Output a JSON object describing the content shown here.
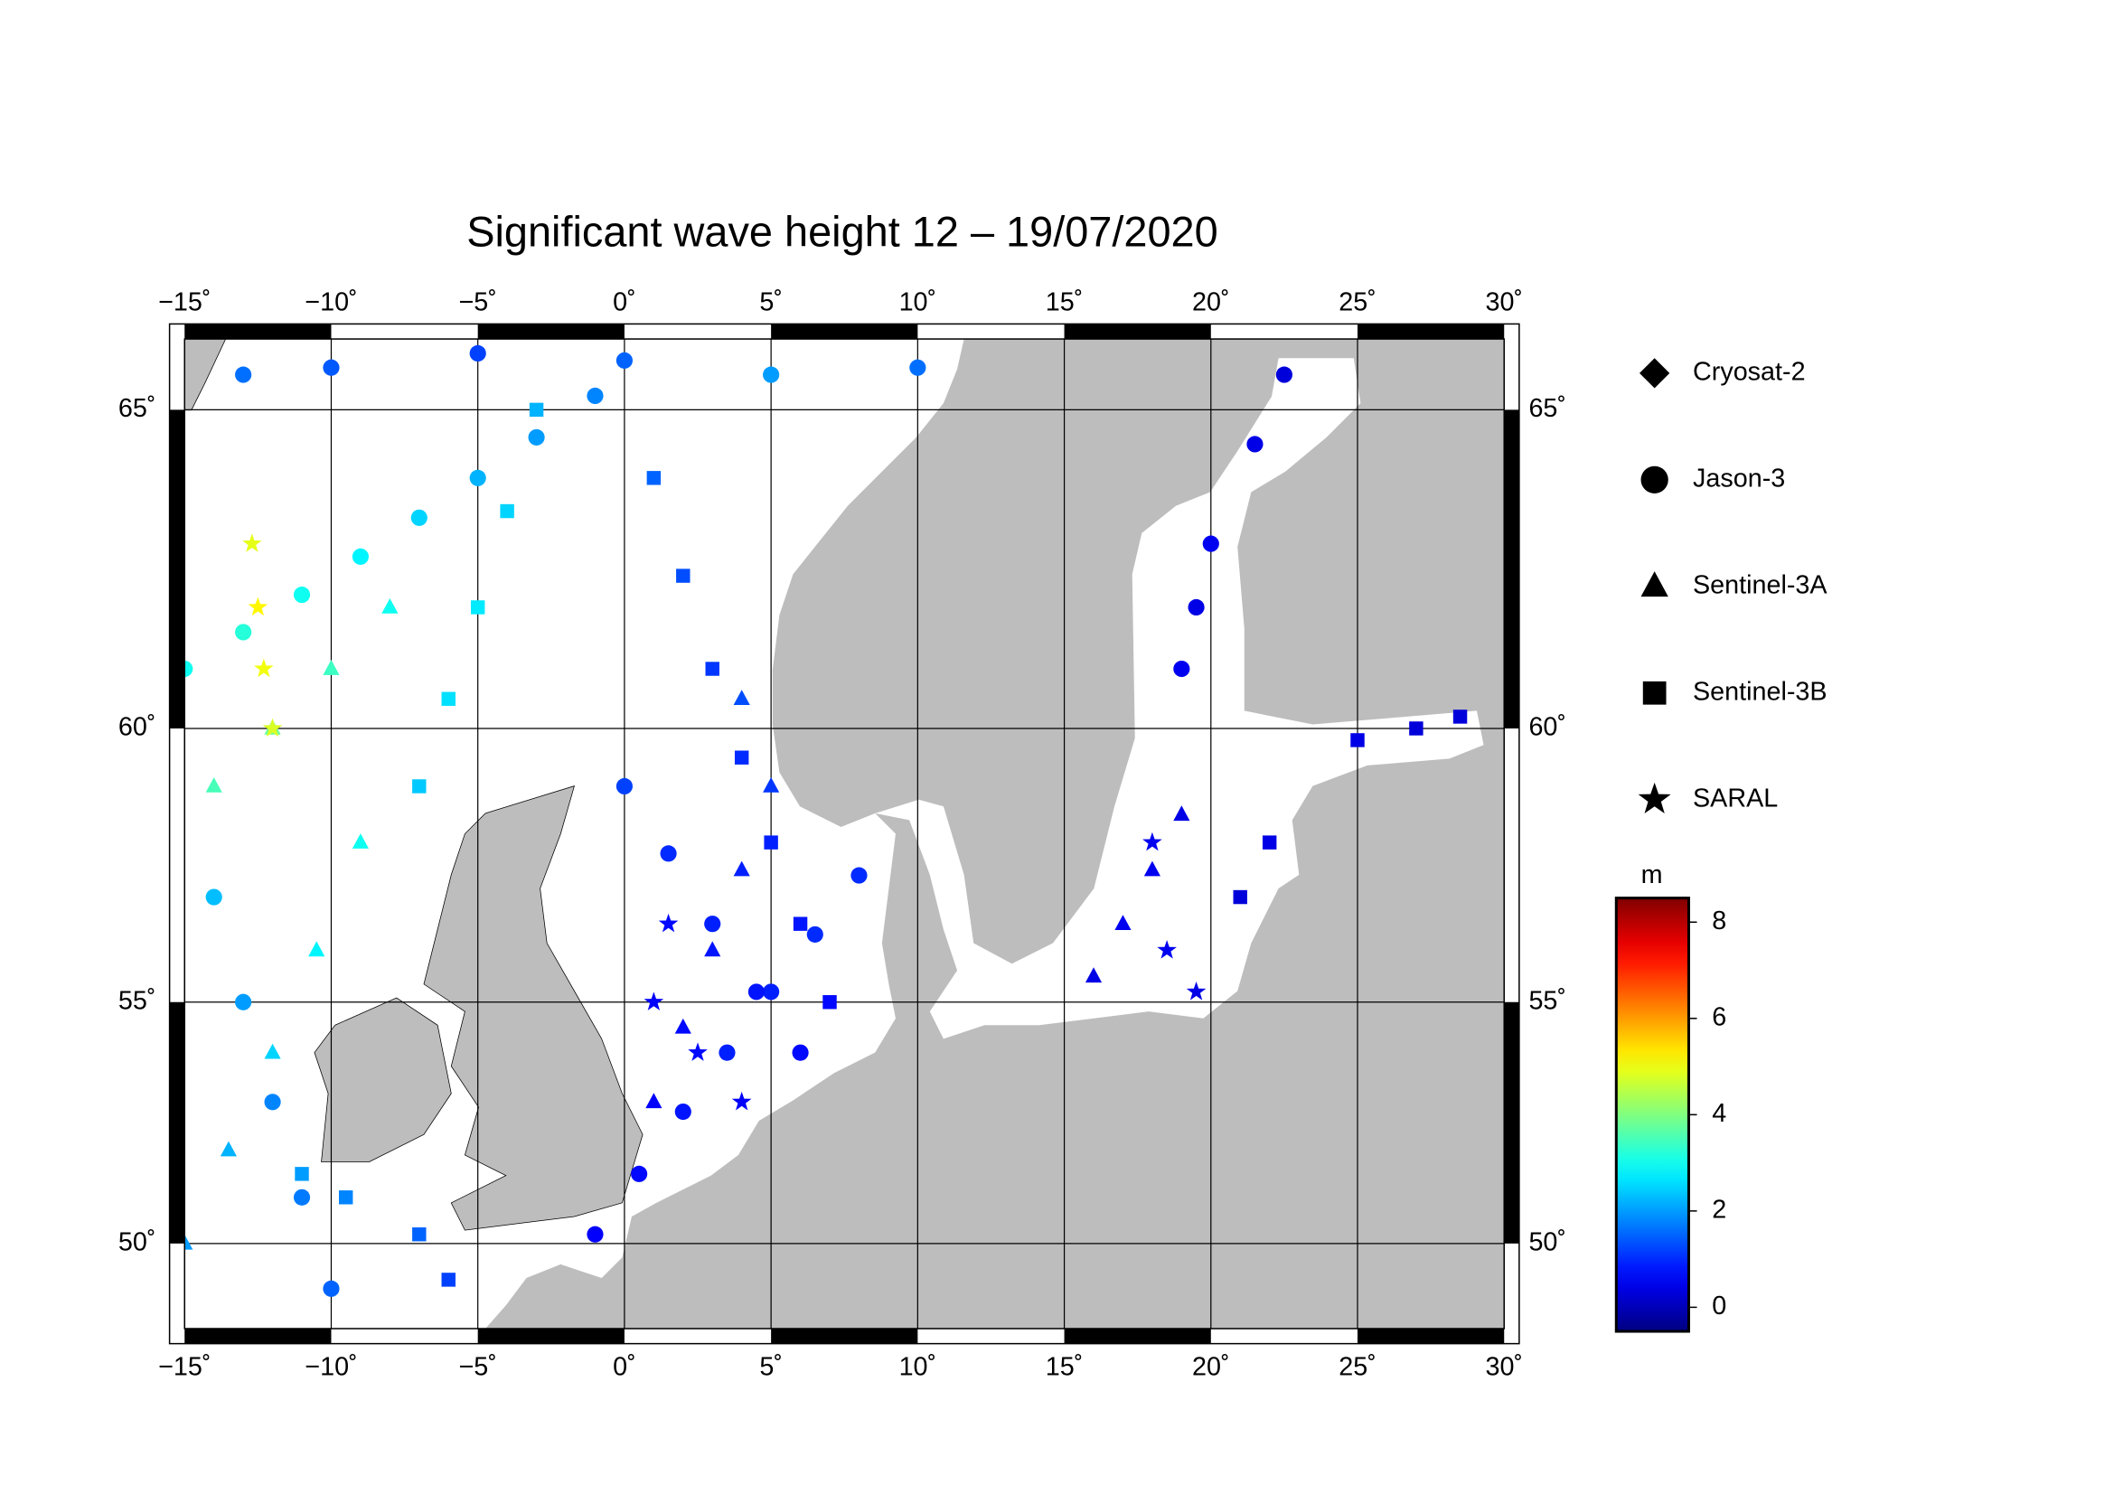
{
  "chart_data": {
    "type": "map",
    "title": "Significant wave height 12 – 19/07/2020",
    "projection": "mercator",
    "xlim": [
      -15,
      30
    ],
    "ylim": [
      48.1,
      66
    ],
    "xticks": [
      {
        "value": -15,
        "label": "−15˚"
      },
      {
        "value": -10,
        "label": "−10˚"
      },
      {
        "value": -5,
        "label": "−5˚"
      },
      {
        "value": 0,
        "label": "0˚"
      },
      {
        "value": 5,
        "label": "5˚"
      },
      {
        "value": 10,
        "label": "10˚"
      },
      {
        "value": 15,
        "label": "15˚"
      },
      {
        "value": 20,
        "label": "20˚"
      },
      {
        "value": 25,
        "label": "25˚"
      },
      {
        "value": 30,
        "label": "30˚"
      }
    ],
    "yticks": [
      {
        "value": 50,
        "label": "50˚"
      },
      {
        "value": 55,
        "label": "55˚"
      },
      {
        "value": 60,
        "label": "60˚"
      },
      {
        "value": 65,
        "label": "65˚"
      }
    ],
    "grid": true,
    "series": [
      {
        "name": "Cryosat-2",
        "marker": "diamond",
        "lon": [],
        "lat": [],
        "values": []
      },
      {
        "name": "Jason-3",
        "marker": "circle",
        "lon": [
          -1,
          0.5,
          2,
          3.5,
          5,
          6.5,
          8,
          0,
          1.5,
          3,
          4.5,
          6,
          -15,
          -13,
          -11,
          -9,
          -7,
          -5,
          -3,
          -1,
          -10,
          -11,
          -12,
          -13,
          -14,
          19,
          19.5,
          20,
          21.5,
          22.5,
          -13,
          -10,
          -5,
          0,
          5,
          10
        ],
        "lat": [
          50.2,
          51.5,
          52.8,
          54,
          55.2,
          56.3,
          57.4,
          59,
          57.8,
          56.5,
          55.2,
          54,
          61,
          61.6,
          62.2,
          62.8,
          63.4,
          64,
          64.6,
          65.2,
          49,
          51,
          53,
          55,
          57,
          61,
          62,
          63,
          64.5,
          65.5,
          65.5,
          65.6,
          65.8,
          65.7,
          65.5,
          65.6
        ],
        "values": [
          0.6,
          0.7,
          0.8,
          0.9,
          0.9,
          1.0,
          1.0,
          1.2,
          1.0,
          0.9,
          0.8,
          0.7,
          3.0,
          3.2,
          3.0,
          2.8,
          2.5,
          2.2,
          2.0,
          1.8,
          1.5,
          1.7,
          1.8,
          2.0,
          2.3,
          0.5,
          0.4,
          0.5,
          0.4,
          0.3,
          1.6,
          1.4,
          1.2,
          1.5,
          2.0,
          1.6
        ]
      },
      {
        "name": "Sentinel-3A",
        "marker": "triangle",
        "lon": [
          -15,
          -13.5,
          -12,
          -10.5,
          -9,
          1,
          2,
          3,
          4,
          5,
          4,
          16,
          17,
          18,
          19,
          -14,
          -12,
          -10,
          -8
        ],
        "lat": [
          50,
          52,
          54,
          56,
          58,
          53,
          54.5,
          56,
          57.5,
          59,
          60.5,
          55.5,
          56.5,
          57.5,
          58.5,
          59,
          60,
          61,
          62
        ],
        "values": [
          2.0,
          2.2,
          2.5,
          2.8,
          3.0,
          0.6,
          0.7,
          0.8,
          0.9,
          1.1,
          1.3,
          0.4,
          0.5,
          0.5,
          0.4,
          3.5,
          3.8,
          3.4,
          3.0
        ]
      },
      {
        "name": "Sentinel-3B",
        "marker": "square",
        "lon": [
          -6,
          -7,
          -9.5,
          -11,
          7,
          6,
          5,
          4,
          3,
          2,
          1,
          21,
          22,
          25,
          27,
          28.5,
          -3,
          -4,
          -5,
          -6,
          -7
        ],
        "lat": [
          49.2,
          50.2,
          51,
          51.5,
          55,
          56.5,
          58,
          59.5,
          61,
          62.5,
          64,
          57,
          58,
          59.8,
          60,
          60.2,
          65,
          63.5,
          62,
          60.5,
          59
        ],
        "values": [
          1.2,
          1.5,
          1.8,
          2.0,
          0.7,
          0.8,
          0.9,
          1.0,
          1.1,
          1.3,
          1.5,
          0.3,
          0.4,
          0.4,
          0.3,
          0.3,
          2.2,
          2.5,
          2.7,
          2.6,
          2.4
        ]
      },
      {
        "name": "SARAL",
        "marker": "star",
        "lon": [
          -12,
          -12.3,
          -12.5,
          -12.7,
          1,
          2.5,
          4,
          1.5,
          18,
          18.5,
          19.5
        ],
        "lat": [
          60,
          61,
          62,
          63,
          55,
          54,
          53,
          56.5,
          58,
          56,
          55.2
        ],
        "values": [
          4.8,
          5.0,
          5.2,
          4.9,
          0.6,
          0.7,
          0.6,
          0.7,
          0.5,
          0.5,
          0.4
        ]
      }
    ],
    "colorbar": {
      "label": "m",
      "lim": [
        -0.5,
        8.5
      ],
      "ticks": [
        0,
        2,
        4,
        6,
        8
      ],
      "colormap": "jet"
    }
  }
}
